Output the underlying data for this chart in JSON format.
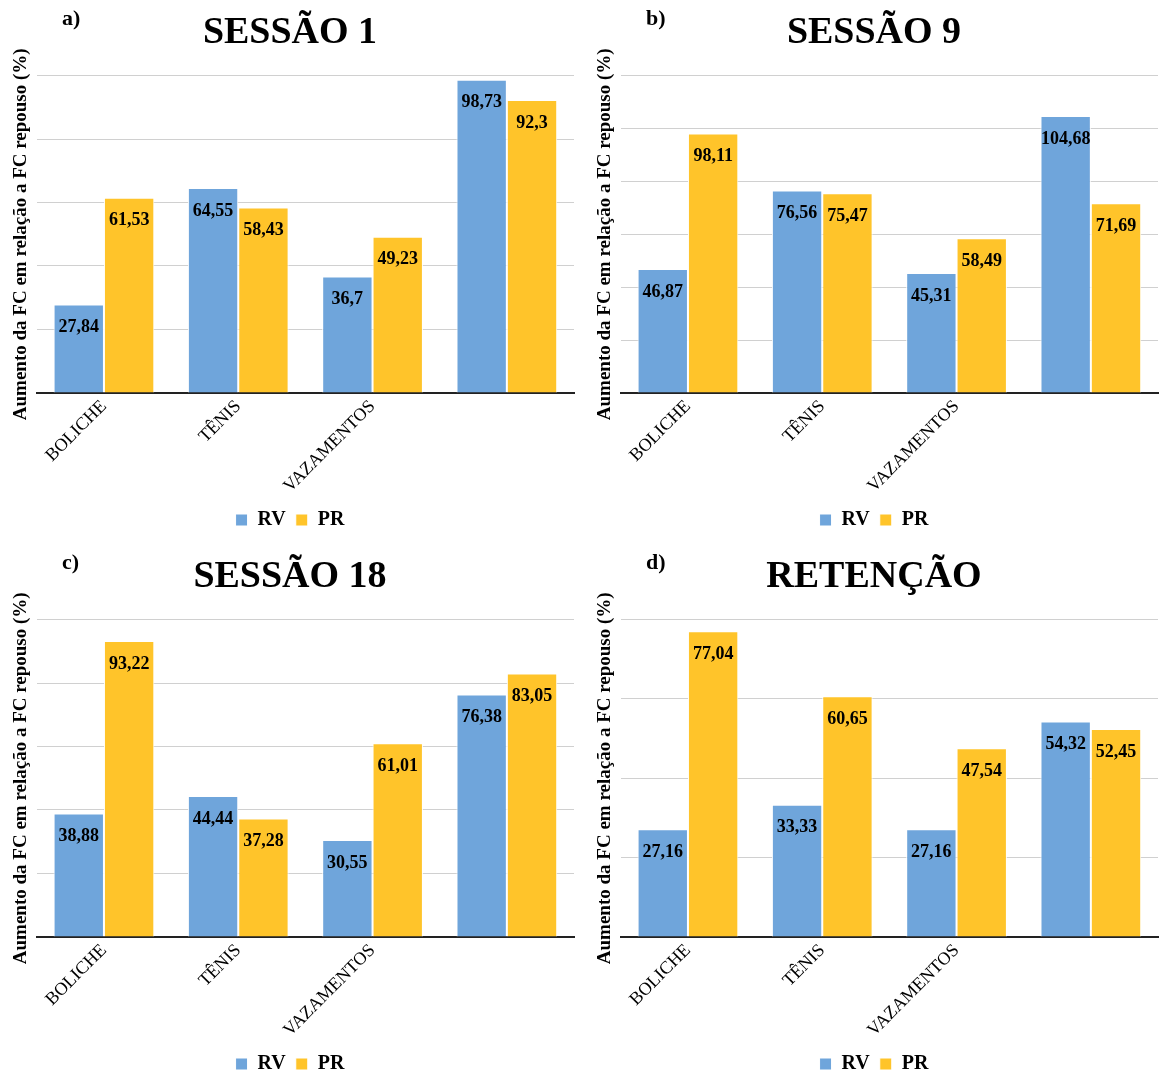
{
  "chart_data": [
    {
      "type": "bar",
      "title": "SESSÃO 1",
      "annotations": [
        "a)"
      ],
      "ylabel": "Aumento da FC em relação a FC repouso (%)",
      "categories": [
        "BOLICHE",
        "TÊNIS",
        "VAZAMENTOS",
        null
      ],
      "series": [
        {
          "name": "RV",
          "color": "#6fa5db",
          "values": [
            27.84,
            64.55,
            36.7,
            98.73
          ],
          "value_labels": [
            "27,84",
            "64,55",
            "36,7",
            "98,73"
          ]
        },
        {
          "name": "PR",
          "color": "#ffc42a",
          "values": [
            61.53,
            58.43,
            49.23,
            92.3
          ],
          "value_labels": [
            "61,53",
            "58,43",
            "49,23",
            "92,3"
          ]
        }
      ],
      "grid": "y",
      "tick_labels": "x",
      "legend": "bottom"
    },
    {
      "type": "bar",
      "title": "SESSÃO 9",
      "annotations": [
        "b)"
      ],
      "ylabel": "Aumento da FC em relação a FC repouso (%)",
      "categories": [
        "BOLICHE",
        "TÊNIS",
        "VAZAMENTOS",
        null
      ],
      "series": [
        {
          "name": "RV",
          "color": "#6fa5db",
          "values": [
            46.87,
            76.56,
            45.31,
            104.68
          ],
          "value_labels": [
            "46,87",
            "76,56",
            "45,31",
            "104,68"
          ]
        },
        {
          "name": "PR",
          "color": "#ffc42a",
          "values": [
            98.11,
            75.47,
            58.49,
            71.69
          ],
          "value_labels": [
            "98,11",
            "75,47",
            "58,49",
            "71,69"
          ]
        }
      ],
      "grid": "y",
      "tick_labels": "x",
      "legend": "bottom"
    },
    {
      "type": "bar",
      "title": "SESSÃO 18",
      "annotations": [
        "c)"
      ],
      "ylabel": "Aumento da FC em relação a FC repouso (%)",
      "categories": [
        "BOLICHE",
        "TÊNIS",
        "VAZAMENTOS",
        null
      ],
      "series": [
        {
          "name": "RV",
          "color": "#6fa5db",
          "values": [
            38.88,
            44.44,
            30.55,
            76.38
          ],
          "value_labels": [
            "38,88",
            "44,44",
            "30,55",
            "76,38"
          ]
        },
        {
          "name": "PR",
          "color": "#ffc42a",
          "values": [
            93.22,
            37.28,
            61.01,
            83.05
          ],
          "value_labels": [
            "93,22",
            "37,28",
            "61,01",
            "83,05"
          ]
        }
      ],
      "grid": "y",
      "tick_labels": "x",
      "legend": "bottom"
    },
    {
      "type": "bar",
      "title": "RETENÇÃO",
      "annotations": [
        "d)"
      ],
      "ylabel": "Aumento da FC em relação a FC repouso (%)",
      "categories": [
        "BOLICHE",
        "TÊNIS",
        "VAZAMENTOS",
        null
      ],
      "series": [
        {
          "name": "RV",
          "color": "#6fa5db",
          "values": [
            27.16,
            33.33,
            27.16,
            54.32
          ],
          "value_labels": [
            "27,16",
            "33,33",
            "27,16",
            "54,32"
          ]
        },
        {
          "name": "PR",
          "color": "#ffc42a",
          "values": [
            77.04,
            60.65,
            47.54,
            52.45
          ],
          "value_labels": [
            "77,04",
            "60,65",
            "47,54",
            "52,45"
          ]
        }
      ],
      "grid": "y",
      "tick_labels": "x",
      "legend": "bottom"
    }
  ]
}
